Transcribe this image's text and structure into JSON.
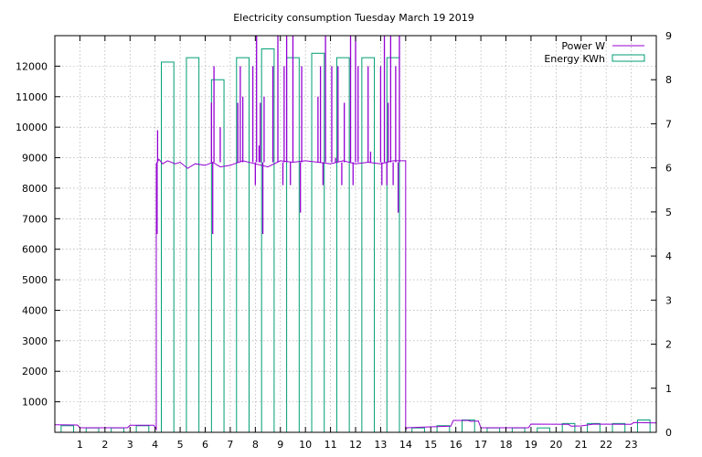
{
  "chart_data": {
    "type": "bar+line",
    "title": "Electricity consumption Tuesday March 19 2019",
    "x_range": [
      0,
      24
    ],
    "x_ticks": [
      1,
      2,
      3,
      4,
      5,
      6,
      7,
      8,
      9,
      10,
      11,
      12,
      13,
      14,
      15,
      16,
      17,
      18,
      19,
      20,
      21,
      22,
      23
    ],
    "y_left": {
      "range": [
        0,
        13000
      ],
      "ticks": [
        1000,
        2000,
        3000,
        4000,
        5000,
        6000,
        7000,
        8000,
        9000,
        10000,
        11000,
        12000
      ]
    },
    "y_right": {
      "range": [
        0,
        9
      ],
      "ticks": [
        0,
        1,
        2,
        3,
        4,
        5,
        6,
        7,
        8,
        9
      ]
    },
    "grid": true,
    "legend_position": "top-right",
    "legend": [
      {
        "name": "Power W",
        "color": "#9400d3",
        "style": "line"
      },
      {
        "name": "Energy KWh",
        "color": "#009e73",
        "style": "box"
      }
    ],
    "energy_kwh": {
      "name": "Energy KWh",
      "axis": "right",
      "hours": [
        0,
        1,
        2,
        3,
        4,
        5,
        6,
        7,
        8,
        9,
        10,
        11,
        12,
        13,
        14,
        15,
        16,
        17,
        18,
        19,
        20,
        21,
        22,
        23
      ],
      "values": [
        0.15,
        0.1,
        0.1,
        0.15,
        8.4,
        8.5,
        8.0,
        8.5,
        8.7,
        8.5,
        8.6,
        8.5,
        8.5,
        8.5,
        0.1,
        0.15,
        0.28,
        0.1,
        0.1,
        0.1,
        0.2,
        0.2,
        0.2,
        0.28
      ]
    },
    "power_w": {
      "name": "Power W",
      "axis": "left",
      "baseline_points": [
        [
          0,
          250
        ],
        [
          0.9,
          240
        ],
        [
          1.0,
          150
        ],
        [
          2.9,
          150
        ],
        [
          3.0,
          230
        ],
        [
          3.95,
          230
        ],
        [
          4.05,
          100
        ],
        [
          14.0,
          100
        ],
        [
          14.05,
          150
        ],
        [
          15.0,
          180
        ],
        [
          15.8,
          200
        ],
        [
          15.9,
          390
        ],
        [
          16.5,
          390
        ],
        [
          16.6,
          360
        ],
        [
          16.9,
          370
        ],
        [
          17.0,
          150
        ],
        [
          18.9,
          150
        ],
        [
          19.0,
          270
        ],
        [
          20.5,
          260
        ],
        [
          20.6,
          200
        ],
        [
          21.0,
          210
        ],
        [
          21.5,
          270
        ],
        [
          23.0,
          260
        ],
        [
          23.1,
          320
        ],
        [
          24.0,
          310
        ]
      ],
      "high_points": [
        [
          4.05,
          8800
        ],
        [
          4.15,
          8950
        ],
        [
          4.3,
          8800
        ],
        [
          4.5,
          8900
        ],
        [
          4.8,
          8800
        ],
        [
          5.0,
          8850
        ],
        [
          5.3,
          8650
        ],
        [
          5.6,
          8800
        ],
        [
          6.0,
          8750
        ],
        [
          6.3,
          8850
        ],
        [
          6.6,
          8700
        ],
        [
          7.0,
          8750
        ],
        [
          7.5,
          8900
        ],
        [
          8.0,
          8800
        ],
        [
          8.5,
          8700
        ],
        [
          9.0,
          8900
        ],
        [
          9.5,
          8850
        ],
        [
          10.0,
          8900
        ],
        [
          10.5,
          8850
        ],
        [
          11.0,
          8800
        ],
        [
          11.5,
          8900
        ],
        [
          12.0,
          8800
        ],
        [
          12.5,
          8850
        ],
        [
          13.0,
          8800
        ],
        [
          13.5,
          8900
        ],
        [
          14.0,
          8900
        ]
      ],
      "spikes": [
        [
          4.08,
          6500
        ],
        [
          4.1,
          9900
        ],
        [
          6.25,
          10800
        ],
        [
          6.3,
          6500
        ],
        [
          6.35,
          12000
        ],
        [
          6.6,
          10000
        ],
        [
          7.3,
          10800
        ],
        [
          7.4,
          12000
        ],
        [
          7.5,
          11000
        ],
        [
          7.9,
          12000
        ],
        [
          8.0,
          8100
        ],
        [
          8.05,
          13000
        ],
        [
          8.15,
          9400
        ],
        [
          8.2,
          10800
        ],
        [
          8.3,
          6500
        ],
        [
          8.35,
          11000
        ],
        [
          8.7,
          12000
        ],
        [
          8.9,
          13000
        ],
        [
          9.1,
          8100
        ],
        [
          9.15,
          12000
        ],
        [
          9.25,
          13000
        ],
        [
          9.4,
          8100
        ],
        [
          9.5,
          13000
        ],
        [
          9.8,
          7200
        ],
        [
          9.85,
          12000
        ],
        [
          10.5,
          11000
        ],
        [
          10.6,
          12000
        ],
        [
          10.7,
          8100
        ],
        [
          10.8,
          13000
        ],
        [
          11.05,
          12000
        ],
        [
          11.2,
          9000
        ],
        [
          11.3,
          12000
        ],
        [
          11.45,
          8100
        ],
        [
          11.55,
          10800
        ],
        [
          11.8,
          13000
        ],
        [
          11.9,
          8100
        ],
        [
          12.0,
          13000
        ],
        [
          12.1,
          12000
        ],
        [
          12.5,
          12000
        ],
        [
          12.6,
          9200
        ],
        [
          13.0,
          12000
        ],
        [
          13.05,
          8100
        ],
        [
          13.15,
          13000
        ],
        [
          13.25,
          8100
        ],
        [
          13.3,
          10800
        ],
        [
          13.4,
          13000
        ],
        [
          13.5,
          8100
        ],
        [
          13.6,
          12000
        ],
        [
          13.7,
          7200
        ],
        [
          13.75,
          13000
        ]
      ]
    }
  }
}
